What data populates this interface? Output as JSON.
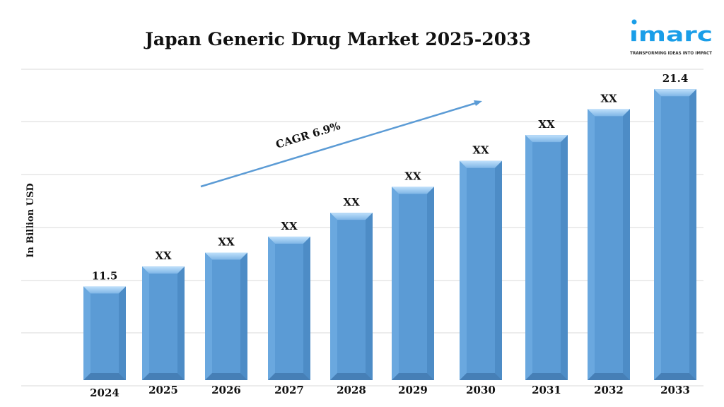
{
  "logo": {
    "text": "imarc",
    "tagline": "TRANSFORMING IDEAS INTO IMPACT",
    "color": "#1a9ee8"
  },
  "chart_data": {
    "type": "bar",
    "title": "Japan Generic Drug Market 2025-2033",
    "ylabel": "In Billion USD",
    "xlabel": "",
    "categories": [
      "2024",
      "2025",
      "2026",
      "2027",
      "2028",
      "2029",
      "2030",
      "2031",
      "2032",
      "2033"
    ],
    "values": [
      11.5,
      12.5,
      13.2,
      14.0,
      15.2,
      16.5,
      17.8,
      19.1,
      20.4,
      21.4
    ],
    "data_labels": [
      "11.5",
      "XX",
      "XX",
      "XX",
      "XX",
      "XX",
      "XX",
      "XX",
      "XX",
      "21.4"
    ],
    "ylim": [
      6.8,
      22.4
    ],
    "grid": true,
    "bar_color": "#5b9bd5",
    "annotation": {
      "text": "CAGR 6.9%",
      "type": "arrow",
      "color": "#5b9bd5"
    }
  }
}
